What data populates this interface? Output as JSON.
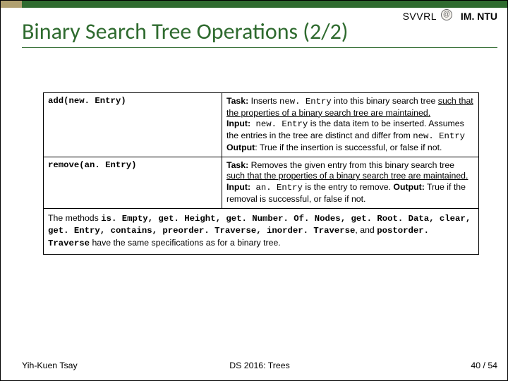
{
  "header": {
    "svvrl": "SVVRL",
    "imntu": "IM. NTU",
    "at_glyph": "@"
  },
  "title": "Binary Search Tree Operations (2/2)",
  "table": {
    "rows": [
      {
        "op": "add(new. Entry)",
        "task_label": "Task:",
        "task_text1": " Inserts ",
        "task_code1": "new. Entry",
        "task_text2": " into this binary search tree ",
        "task_under": "such that the properties of a binary search tree are maintained.",
        "input_label": "Input:",
        "input_code": " new. Entry",
        "input_text1": " is the data item to be inserted. Assumes the entries in the tree are distinct and differ from ",
        "input_code2": "new. Entry",
        "output_label": "Output",
        "output_text": ": True if the insertion is successful, or false if not."
      },
      {
        "op": "remove(an. Entry)",
        "task_label": "Task:",
        "task_text1": " Removes the given entry from this binary search tree ",
        "task_under": "such that the properties of a binary search tree are maintained.",
        "input_label": "Input:",
        "input_code": " an. Entry",
        "input_text1": " is the entry to remove. ",
        "output_label": "Output:",
        "output_text": " True if the removal is successful, or false if not."
      }
    ]
  },
  "note": {
    "pre": "The methods ",
    "m1": "is. Empty",
    "m2": "get. Height",
    "m3": "get. Number. Of. Nodes",
    "m4": "get. Root. Data",
    "m5": "clear",
    "m6": "get. Entry",
    "m7": "contains",
    "m8": "preorder. Traverse",
    "m9": "inorder. Traverse",
    "and": ", and ",
    "m10": "postorder. Traverse",
    "post": " have the same specifications as for a binary tree."
  },
  "footer": {
    "left": "Yih-Kuen Tsay",
    "mid": "DS 2016: Trees",
    "right": "40 / 54"
  },
  "colors": {
    "green": "#2f6b2f",
    "tan": "#b0a070"
  }
}
